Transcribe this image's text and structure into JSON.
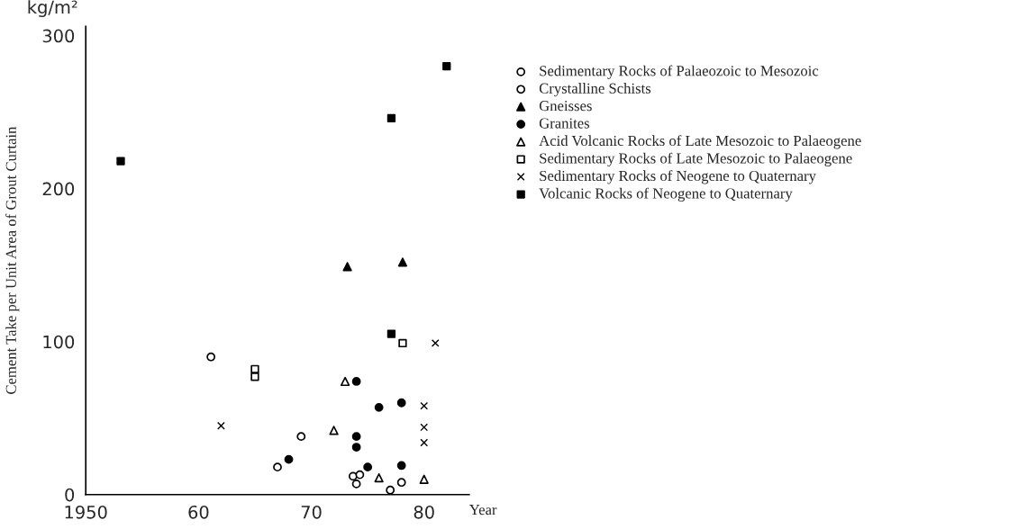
{
  "chart_data": {
    "type": "scatter",
    "ylabel": "Cement Take per Unit Area of Grout Curtain",
    "xlabel": "Year",
    "annotations": [
      "kg/m²"
    ],
    "xlim": [
      1950,
      1984
    ],
    "xticks": [
      {
        "value": 1950,
        "label": "1950"
      },
      {
        "value": 1960,
        "label": "60"
      },
      {
        "value": 1970,
        "label": "70"
      },
      {
        "value": 1980,
        "label": "80"
      }
    ],
    "ylim": [
      0,
      306
    ],
    "yticks": [
      0,
      100,
      200,
      300
    ],
    "grid": false,
    "legend": "right",
    "series": [
      {
        "name": "Sedimentary Rocks of Palaeozoic to Mesozoic",
        "color": "#ffffff",
        "marker": "circle",
        "x": [
          1961.1,
          1967.0,
          1969.1,
          1973.7,
          1974.3,
          1974.0
        ],
        "values": [
          90,
          18,
          38,
          12,
          13,
          7
        ]
      },
      {
        "name": "Crystalline Schists",
        "color": "#ffffff",
        "marker": "circle",
        "x": [
          1977.0,
          1978.0
        ],
        "values": [
          3,
          8
        ]
      },
      {
        "name": "Gneisses",
        "color": "#000000",
        "marker": "triangle",
        "x": [
          1973.2,
          1978.1
        ],
        "values": [
          149,
          152
        ]
      },
      {
        "name": "Granites",
        "color": "#000000",
        "marker": "circle",
        "x": [
          1974.0,
          1976.0,
          1978.0,
          1968.0,
          1974.0,
          1974.0,
          1975.0,
          1978.0
        ],
        "values": [
          74,
          57,
          60,
          23,
          38,
          31,
          18,
          19
        ]
      },
      {
        "name": "Acid Volcanic Rocks of Late Mesozoic to Palaeogene",
        "color": "#ffffff",
        "marker": "triangle",
        "x": [
          1973.0,
          1972.0,
          1976.0,
          1980.0
        ],
        "values": [
          74,
          42,
          11,
          10
        ]
      },
      {
        "name": "Sedimentary Rocks of Late Mesozoic to Palaeogene",
        "color": "#ffffff",
        "marker": "square",
        "x": [
          1965.0,
          1965.0,
          1978.1
        ],
        "values": [
          82,
          77,
          99
        ]
      },
      {
        "name": "Sedimentary Rocks of Neogene to Quaternary",
        "color": "#000000",
        "marker": "cross",
        "x": [
          1962.0,
          1980.0,
          1980.0,
          1980.0,
          1981.0
        ],
        "values": [
          45,
          58,
          44,
          34,
          99
        ]
      },
      {
        "name": "Volcanic Rocks of Neogene to Quaternary",
        "color": "#000000",
        "marker": "square",
        "x": [
          1953.1,
          1977.1,
          1977.1,
          1982.0
        ],
        "values": [
          218,
          246,
          105,
          280
        ]
      }
    ]
  }
}
